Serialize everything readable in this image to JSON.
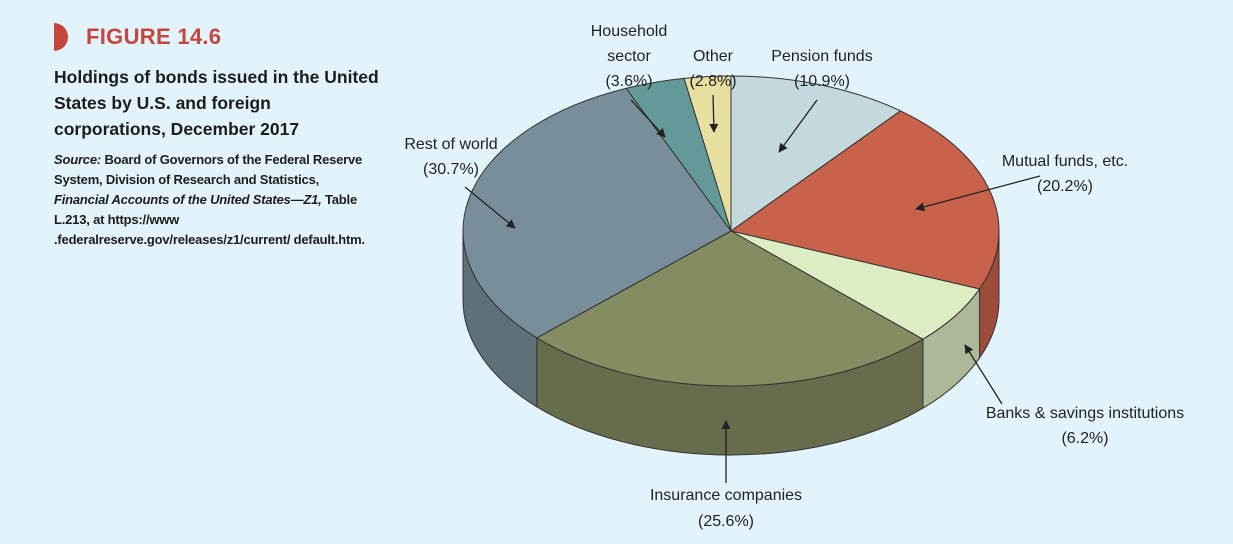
{
  "figure": {
    "label": "FIGURE 14.6",
    "title": "Holdings of bonds issued in the United States by U.S. and foreign corporations, December 2017",
    "source_label": "Source:",
    "source_part1": "Board of Governors of the Federal Reserve System, Division of Research and Statistics,",
    "source_italic": "Financial Accounts of the United States—Z1,",
    "source_part2": "Table L.213, at https://www .federalreserve.gov/releases/z1/current/ default.htm.",
    "accent_color": "#c5463c",
    "background_color": "#e3f3fb"
  },
  "chart_data": {
    "type": "pie",
    "title": "Holdings of bonds issued in the United States by U.S. and foreign corporations, December 2017",
    "style": "3d",
    "slices": [
      {
        "label": "Pension funds",
        "value": 10.9,
        "value_label": "(10.9%)",
        "color": "#c4d9dc"
      },
      {
        "label": "Mutual funds, etc.",
        "value": 20.2,
        "value_label": "(20.2%)",
        "color": "#c9624a"
      },
      {
        "label": "Banks & savings institutions",
        "value": 6.2,
        "value_label": "(6.2%)",
        "color": "#dcecc3"
      },
      {
        "label": "Insurance companies",
        "value": 25.6,
        "value_label": "(25.6%)",
        "color": "#848c61"
      },
      {
        "label": "Rest of world",
        "value": 30.7,
        "value_label": "(30.7%)",
        "color": "#788f9b"
      },
      {
        "label": "Household sector",
        "value": 3.6,
        "value_label": "(3.6%)",
        "color": "#64999a"
      },
      {
        "label": "Other",
        "value": 2.8,
        "value_label": "(2.8%)",
        "color": "#e7dfa0"
      }
    ]
  }
}
